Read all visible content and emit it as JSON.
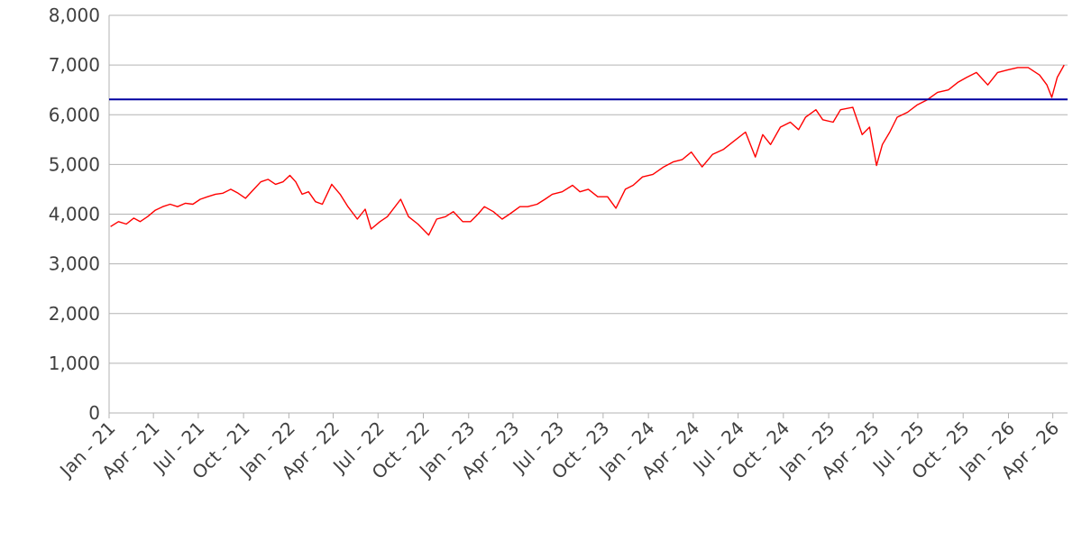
{
  "chart_data": {
    "type": "line",
    "title": "",
    "xlabel": "",
    "ylabel": "",
    "ylim": [
      0,
      8000
    ],
    "xlim": [
      "2021-01-01",
      "2026-05-01"
    ],
    "grid": "horizontal",
    "legend": "none",
    "y_ticks": [
      {
        "value": 0,
        "label": "0"
      },
      {
        "value": 1000,
        "label": "1,000"
      },
      {
        "value": 2000,
        "label": "2,000"
      },
      {
        "value": 3000,
        "label": "3,000"
      },
      {
        "value": 4000,
        "label": "4,000"
      },
      {
        "value": 5000,
        "label": "5,000"
      },
      {
        "value": 6000,
        "label": "6,000"
      },
      {
        "value": 7000,
        "label": "7,000"
      },
      {
        "value": 8000,
        "label": "8,000"
      }
    ],
    "x_ticks": [
      {
        "date": "2021-01-01",
        "label": "Jan - 21"
      },
      {
        "date": "2021-04-01",
        "label": "Apr - 21"
      },
      {
        "date": "2021-07-01",
        "label": "Jul - 21"
      },
      {
        "date": "2021-10-01",
        "label": "Oct - 21"
      },
      {
        "date": "2022-01-01",
        "label": "Jan - 22"
      },
      {
        "date": "2022-04-01",
        "label": "Apr - 22"
      },
      {
        "date": "2022-07-01",
        "label": "Jul - 22"
      },
      {
        "date": "2022-10-01",
        "label": "Oct - 22"
      },
      {
        "date": "2023-01-01",
        "label": "Jan - 23"
      },
      {
        "date": "2023-04-01",
        "label": "Apr - 23"
      },
      {
        "date": "2023-07-01",
        "label": "Jul - 23"
      },
      {
        "date": "2023-10-01",
        "label": "Oct - 23"
      },
      {
        "date": "2024-01-01",
        "label": "Jan - 24"
      },
      {
        "date": "2024-04-01",
        "label": "Apr - 24"
      },
      {
        "date": "2024-07-01",
        "label": "Jul - 24"
      },
      {
        "date": "2024-10-01",
        "label": "Oct - 24"
      },
      {
        "date": "2025-01-01",
        "label": "Jan - 25"
      },
      {
        "date": "2025-04-01",
        "label": "Apr - 25"
      },
      {
        "date": "2025-07-01",
        "label": "Jul - 25"
      },
      {
        "date": "2025-10-01",
        "label": "Oct - 25"
      },
      {
        "date": "2026-01-01",
        "label": "Jan - 26"
      },
      {
        "date": "2026-04-01",
        "label": "Apr - 26"
      }
    ],
    "series": [
      {
        "color": "#ff0000",
        "points": [
          [
            "2021-01-04",
            3750
          ],
          [
            "2021-01-20",
            3850
          ],
          [
            "2021-02-05",
            3800
          ],
          [
            "2021-02-20",
            3920
          ],
          [
            "2021-03-05",
            3850
          ],
          [
            "2021-03-20",
            3950
          ],
          [
            "2021-04-05",
            4080
          ],
          [
            "2021-04-20",
            4150
          ],
          [
            "2021-05-05",
            4200
          ],
          [
            "2021-05-20",
            4150
          ],
          [
            "2021-06-05",
            4220
          ],
          [
            "2021-06-20",
            4200
          ],
          [
            "2021-07-05",
            4300
          ],
          [
            "2021-07-20",
            4350
          ],
          [
            "2021-08-05",
            4400
          ],
          [
            "2021-08-20",
            4420
          ],
          [
            "2021-09-05",
            4500
          ],
          [
            "2021-09-20",
            4420
          ],
          [
            "2021-10-05",
            4320
          ],
          [
            "2021-10-20",
            4480
          ],
          [
            "2021-11-05",
            4650
          ],
          [
            "2021-11-20",
            4700
          ],
          [
            "2021-12-05",
            4600
          ],
          [
            "2021-12-20",
            4650
          ],
          [
            "2022-01-03",
            4780
          ],
          [
            "2022-01-15",
            4650
          ],
          [
            "2022-01-28",
            4400
          ],
          [
            "2022-02-10",
            4450
          ],
          [
            "2022-02-24",
            4250
          ],
          [
            "2022-03-10",
            4200
          ],
          [
            "2022-03-29",
            4600
          ],
          [
            "2022-04-15",
            4400
          ],
          [
            "2022-05-01",
            4150
          ],
          [
            "2022-05-20",
            3900
          ],
          [
            "2022-06-05",
            4100
          ],
          [
            "2022-06-17",
            3700
          ],
          [
            "2022-07-05",
            3850
          ],
          [
            "2022-07-20",
            3950
          ],
          [
            "2022-08-16",
            4300
          ],
          [
            "2022-09-01",
            3950
          ],
          [
            "2022-09-20",
            3800
          ],
          [
            "2022-10-12",
            3580
          ],
          [
            "2022-10-28",
            3900
          ],
          [
            "2022-11-15",
            3950
          ],
          [
            "2022-12-01",
            4050
          ],
          [
            "2022-12-20",
            3850
          ],
          [
            "2023-01-05",
            3850
          ],
          [
            "2023-01-20",
            4000
          ],
          [
            "2023-02-02",
            4150
          ],
          [
            "2023-02-20",
            4050
          ],
          [
            "2023-03-10",
            3900
          ],
          [
            "2023-03-25",
            4000
          ],
          [
            "2023-04-15",
            4150
          ],
          [
            "2023-05-01",
            4150
          ],
          [
            "2023-05-20",
            4200
          ],
          [
            "2023-06-05",
            4300
          ],
          [
            "2023-06-20",
            4400
          ],
          [
            "2023-07-10",
            4450
          ],
          [
            "2023-07-31",
            4580
          ],
          [
            "2023-08-15",
            4450
          ],
          [
            "2023-09-01",
            4500
          ],
          [
            "2023-09-20",
            4350
          ],
          [
            "2023-10-10",
            4350
          ],
          [
            "2023-10-27",
            4120
          ],
          [
            "2023-11-15",
            4500
          ],
          [
            "2023-12-01",
            4580
          ],
          [
            "2023-12-20",
            4750
          ],
          [
            "2024-01-10",
            4800
          ],
          [
            "2024-02-01",
            4950
          ],
          [
            "2024-02-20",
            5050
          ],
          [
            "2024-03-10",
            5100
          ],
          [
            "2024-03-28",
            5250
          ],
          [
            "2024-04-19",
            4950
          ],
          [
            "2024-05-10",
            5200
          ],
          [
            "2024-06-01",
            5300
          ],
          [
            "2024-06-20",
            5450
          ],
          [
            "2024-07-16",
            5650
          ],
          [
            "2024-08-05",
            5150
          ],
          [
            "2024-08-20",
            5600
          ],
          [
            "2024-09-05",
            5400
          ],
          [
            "2024-09-25",
            5750
          ],
          [
            "2024-10-15",
            5850
          ],
          [
            "2024-11-01",
            5700
          ],
          [
            "2024-11-15",
            5950
          ],
          [
            "2024-12-06",
            6100
          ],
          [
            "2024-12-20",
            5900
          ],
          [
            "2025-01-10",
            5850
          ],
          [
            "2025-01-25",
            6100
          ],
          [
            "2025-02-19",
            6150
          ],
          [
            "2025-03-10",
            5600
          ],
          [
            "2025-03-25",
            5750
          ],
          [
            "2025-04-08",
            4980
          ],
          [
            "2025-04-20",
            5400
          ],
          [
            "2025-05-05",
            5650
          ],
          [
            "2025-05-20",
            5950
          ],
          [
            "2025-06-10",
            6050
          ],
          [
            "2025-06-30",
            6200
          ],
          [
            "2025-07-20",
            6300
          ],
          [
            "2025-08-10",
            6450
          ],
          [
            "2025-09-01",
            6500
          ],
          [
            "2025-09-20",
            6650
          ],
          [
            "2025-10-08",
            6750
          ],
          [
            "2025-10-28",
            6850
          ],
          [
            "2025-11-20",
            6600
          ],
          [
            "2025-12-10",
            6850
          ],
          [
            "2025-12-30",
            6900
          ],
          [
            "2026-01-20",
            6950
          ],
          [
            "2026-02-10",
            6950
          ],
          [
            "2026-03-05",
            6800
          ],
          [
            "2026-03-20",
            6600
          ],
          [
            "2026-03-30",
            6350
          ],
          [
            "2026-04-10",
            6750
          ],
          [
            "2026-04-24",
            7000
          ]
        ]
      },
      {
        "color": "#0000a0",
        "points": [
          [
            "2021-01-01",
            6310
          ],
          [
            "2026-05-01",
            6310
          ]
        ]
      }
    ]
  }
}
